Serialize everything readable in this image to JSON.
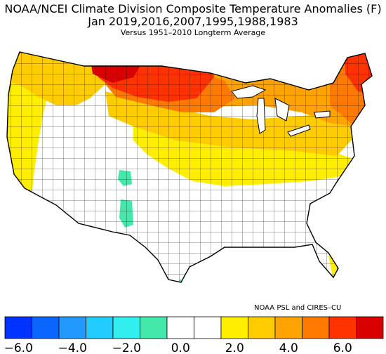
{
  "titles": {
    "line1": "NOAA/NCEI Climate Division Composite Temperature Anomalies (F)",
    "line2": "Jan  2019,2016,2007,1995,1988,1983",
    "line3": "Versus 1951–2010 Longterm Average"
  },
  "credit": "NOAA PSL and CIRES–CU",
  "colorbar": {
    "colors": [
      "#0033ff",
      "#0a66ff",
      "#2299ff",
      "#22ccff",
      "#33eeee",
      "#44e8aa",
      "#ffffff",
      "#ffffff",
      "#ffee00",
      "#ffcc00",
      "#ffa300",
      "#ff7a00",
      "#ff3300",
      "#d90000"
    ],
    "tick_labels": [
      "−6.0",
      "−4.0",
      "−2.0",
      "0.0",
      "2.0",
      "4.0",
      "6.0"
    ]
  },
  "map_regions": [
    {
      "region": "Northern Montana / North Dakota core",
      "color": "#d90000"
    },
    {
      "region": "Northern Plains & Upper Midwest",
      "color": "#ff3300"
    },
    {
      "region": "New England",
      "color": "#ff7a00"
    },
    {
      "region": "Great Lakes / Northeast belt",
      "color": "#ffa300"
    },
    {
      "region": "Pacific Northwest / Mid-latitudes",
      "color": "#ffcc00"
    },
    {
      "region": "West Coast & Central band",
      "color": "#ffee00"
    },
    {
      "region": "Utah / Arizona / South Texas",
      "color": "#44e8aa"
    }
  ]
}
